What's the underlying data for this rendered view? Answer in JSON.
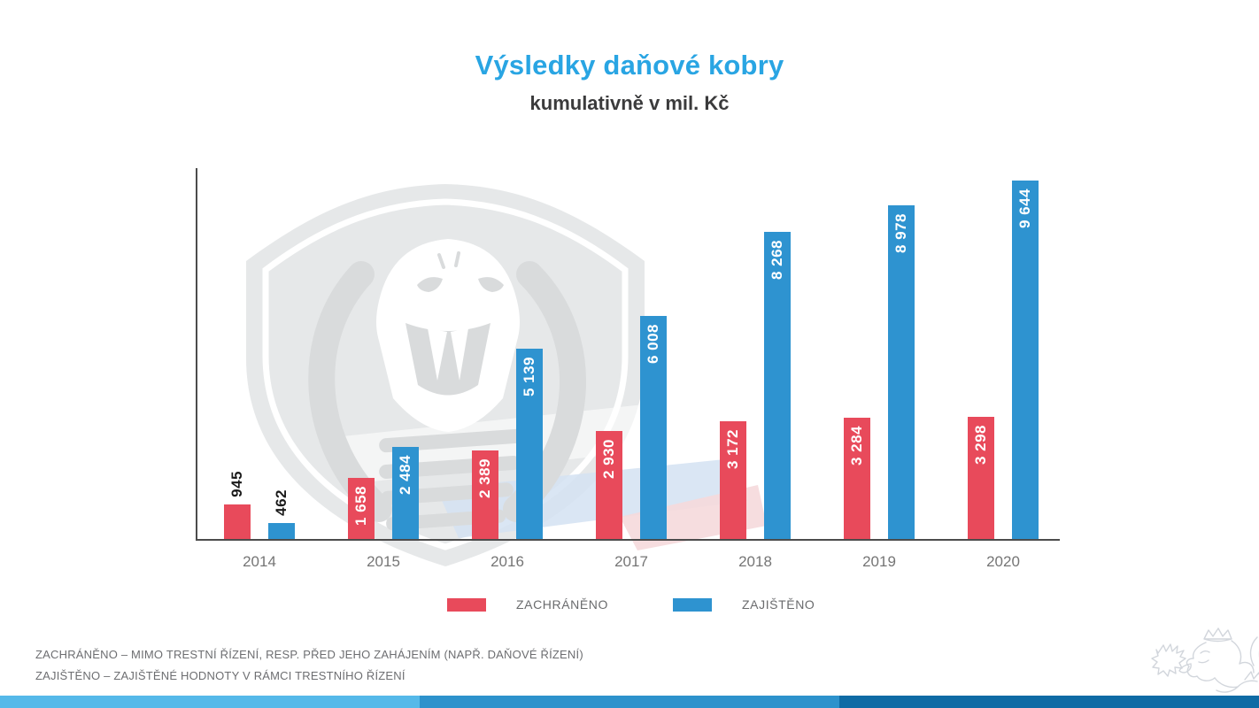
{
  "title": "Výsledky daňové kobry",
  "subtitle": "kumulativně v mil. Kč",
  "chart_data": {
    "type": "bar",
    "title": "Výsledky daňové kobry",
    "subtitle": "kumulativně v mil. Kč",
    "unit": "mil. Kč",
    "categories": [
      "2014",
      "2015",
      "2016",
      "2017",
      "2018",
      "2019",
      "2020"
    ],
    "series": [
      {
        "name": "ZACHRÁNĚNO",
        "color": "#e84a5b",
        "values": [
          945,
          1658,
          2389,
          2930,
          3172,
          3284,
          3298
        ],
        "labels": [
          "945",
          "1 658",
          "2 389",
          "2 930",
          "3 172",
          "3 284",
          "3 298"
        ]
      },
      {
        "name": "ZAJIŠTĚNO",
        "color": "#2e93d0",
        "values": [
          462,
          2484,
          5139,
          6008,
          8268,
          8978,
          9644
        ],
        "labels": [
          "462",
          "2 484",
          "5 139",
          "6 008",
          "8 268",
          "8 978",
          "9 644"
        ]
      }
    ],
    "ylim": [
      0,
      10000
    ],
    "grid": false,
    "y_axis_labels": false,
    "legend_position": "bottom"
  },
  "legend": {
    "items": [
      {
        "label": "ZACHRÁNĚNO",
        "color": "#e84a5b"
      },
      {
        "label": "ZAJIŠTĚNO",
        "color": "#2e93d0"
      }
    ]
  },
  "footnotes": [
    "ZACHRÁNĚNO – MIMO TRESTNÍ ŘÍZENÍ, RESP. PŘED JEHO ZAHÁJENÍM (NAPŘ. DAŇOVÉ ŘÍZENÍ)",
    "ZAJIŠTĚNO – ZAJIŠTĚNÉ HODNOTY V RÁMCI TRESTNÍHO ŘÍZENÍ"
  ],
  "icons": {
    "watermark": "cobra-shield-watermark",
    "emblem": "czech-lion-emblem"
  },
  "colors": {
    "title_blue": "#29a5e3",
    "subtitle_gray": "#3b3b3c",
    "bar_red": "#e84a5b",
    "bar_blue": "#2e93d0",
    "axis": "#4c4c4c",
    "stripe": [
      "#55b9e9",
      "#2d92cc",
      "#0e6ba5"
    ]
  }
}
